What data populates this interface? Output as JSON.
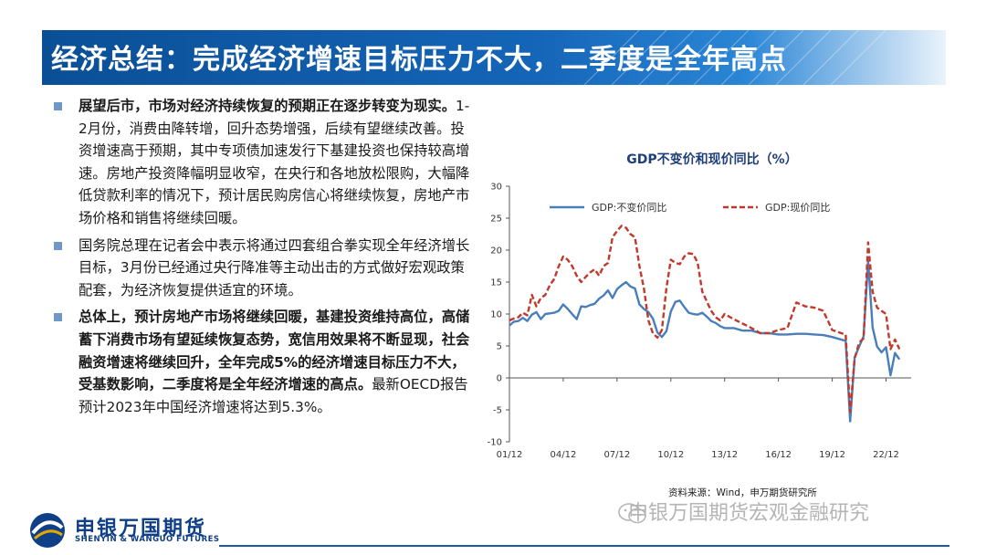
{
  "header": {
    "title": "经济总结：完成经济增速目标压力不大，二季度是全年高点"
  },
  "bullets": [
    {
      "bold": "展望后市，市场对经济持续恢复的预期正在逐步转变为现实。",
      "normal": "1-2月份，消费由降转增，回升态势增强，后续有望继续改善。投资增速高于预期，其中专项债加速发行下基建投资也保持较高增速。房地产投资降幅明显收窄，在央行和各地放松限购，大幅降低贷款利率的情况下，预计居民购房信心将继续恢复，房地产市场价格和销售将继续回暖。"
    },
    {
      "bold": "",
      "normal": "国务院总理在记者会中表示将通过四套组合拳实现全年经济增长目标，3月份已经通过央行降准等主动出击的方式做好宏观政策配套，为经济恢复提供适宜的环境。"
    },
    {
      "bold": "总体上，预计房地产市场将继续回暖，基建投资维持高位，高储蓄下消费市场有望延续恢复态势，宽信用效果将不断显现，社会融资增速将继续回升，全年完成5%的经济增速目标压力不大，受基数影响，二季度将是全年经济增速的高点。",
      "normal": "最新OECD报告预计2023年中国经济增速将达到5.3%。"
    }
  ],
  "chart_data": {
    "type": "line",
    "title": "GDP不变价和现价同比（%）",
    "x_ticks": [
      "01/12",
      "04/12",
      "07/12",
      "10/12",
      "13/12",
      "16/12",
      "19/12",
      "22/12"
    ],
    "ylim": [
      -10,
      30
    ],
    "y_ticks": [
      30,
      25,
      20,
      15,
      10,
      5,
      0,
      -5,
      -10
    ],
    "legend_position": "top",
    "series": [
      {
        "name": "GDP:不变价同比",
        "color": "#4a7ebb",
        "style": "solid",
        "x": [
          2001.0,
          2001.25,
          2001.5,
          2001.75,
          2002.0,
          2002.25,
          2002.5,
          2002.75,
          2003.0,
          2003.25,
          2003.5,
          2003.75,
          2004.0,
          2004.25,
          2004.5,
          2004.75,
          2005.0,
          2005.25,
          2005.5,
          2005.75,
          2006.0,
          2006.25,
          2006.5,
          2006.75,
          2007.0,
          2007.25,
          2007.5,
          2007.75,
          2008.0,
          2008.25,
          2008.5,
          2008.75,
          2009.0,
          2009.25,
          2009.5,
          2009.75,
          2010.0,
          2010.25,
          2010.5,
          2010.75,
          2011.0,
          2011.25,
          2011.5,
          2011.75,
          2012.0,
          2012.25,
          2012.5,
          2012.75,
          2013.0,
          2013.5,
          2014.0,
          2014.5,
          2015.0,
          2015.5,
          2016.0,
          2016.5,
          2017.0,
          2017.5,
          2018.0,
          2018.5,
          2019.0,
          2019.5,
          2019.75,
          2020.0,
          2020.25,
          2020.5,
          2020.75,
          2021.0,
          2021.25,
          2021.5,
          2021.75,
          2022.0,
          2022.25,
          2022.5,
          2022.75
        ],
        "y": [
          8.2,
          8.8,
          8.9,
          9.4,
          8.9,
          9.9,
          10.3,
          9.2,
          10.0,
          10.1,
          10.2,
          10.5,
          11.5,
          10.8,
          10.0,
          9.2,
          11.2,
          11.1,
          11.4,
          11.6,
          12.4,
          12.9,
          13.7,
          12.5,
          13.9,
          14.5,
          15.0,
          14.3,
          14.0,
          11.5,
          10.8,
          10.3,
          9.3,
          7.1,
          6.4,
          7.3,
          10.4,
          11.9,
          12.1,
          11.1,
          10.2,
          10.0,
          9.9,
          10.2,
          9.6,
          8.9,
          8.6,
          8.1,
          7.8,
          7.8,
          7.4,
          7.4,
          7.0,
          7.0,
          6.8,
          6.8,
          6.9,
          6.9,
          6.8,
          6.7,
          6.4,
          6.0,
          5.8,
          -6.8,
          3.2,
          4.9,
          6.5,
          18.3,
          7.9,
          4.9,
          4.0,
          4.8,
          0.4,
          3.9,
          2.9
        ]
      },
      {
        "name": "GDP:现价同比",
        "color": "#c0392b",
        "style": "dashed",
        "x": [
          2001.0,
          2001.25,
          2001.5,
          2001.75,
          2002.0,
          2002.25,
          2002.5,
          2002.75,
          2003.0,
          2003.25,
          2003.5,
          2003.75,
          2004.0,
          2004.25,
          2004.5,
          2004.75,
          2005.0,
          2005.25,
          2005.5,
          2005.75,
          2006.0,
          2006.25,
          2006.5,
          2006.75,
          2007.0,
          2007.25,
          2007.5,
          2007.75,
          2008.0,
          2008.25,
          2008.5,
          2008.75,
          2009.0,
          2009.25,
          2009.5,
          2009.75,
          2010.0,
          2010.25,
          2010.5,
          2010.75,
          2011.0,
          2011.25,
          2011.5,
          2011.75,
          2012.0,
          2012.25,
          2012.5,
          2012.75,
          2013.0,
          2013.5,
          2014.0,
          2014.5,
          2015.0,
          2015.5,
          2016.0,
          2016.5,
          2017.0,
          2017.5,
          2018.0,
          2018.5,
          2019.0,
          2019.5,
          2019.75,
          2020.0,
          2020.25,
          2020.5,
          2020.75,
          2021.0,
          2021.25,
          2021.5,
          2021.75,
          2022.0,
          2022.25,
          2022.5,
          2022.75
        ],
        "y": [
          9.0,
          9.3,
          9.5,
          10.2,
          9.8,
          13.0,
          11.2,
          12.5,
          13.0,
          14.5,
          15.5,
          17.5,
          19.0,
          18.5,
          17.5,
          16.0,
          15.0,
          15.8,
          16.5,
          17.0,
          16.0,
          17.5,
          18.0,
          22.0,
          23.0,
          23.8,
          23.5,
          22.5,
          22.0,
          17.5,
          14.0,
          9.0,
          7.0,
          6.3,
          7.5,
          14.0,
          18.5,
          18.0,
          17.8,
          19.0,
          19.5,
          19.4,
          18.0,
          13.5,
          12.0,
          10.5,
          9.5,
          9.0,
          10.0,
          9.2,
          8.5,
          7.8,
          7.0,
          7.0,
          7.5,
          7.8,
          11.8,
          11.2,
          11.0,
          10.5,
          7.5,
          7.0,
          6.8,
          -5.3,
          3.0,
          5.5,
          6.2,
          21.2,
          13.5,
          11.0,
          10.5,
          10.0,
          4.5,
          6.0,
          4.5
        ]
      }
    ]
  },
  "source": "资料来源：Wind，申万期货研究所",
  "watermark": "申银万国期货宏观金融研究",
  "logo": {
    "cn": "申银万国期货",
    "en": "SHENYIN & WANGUO FUTURES"
  }
}
